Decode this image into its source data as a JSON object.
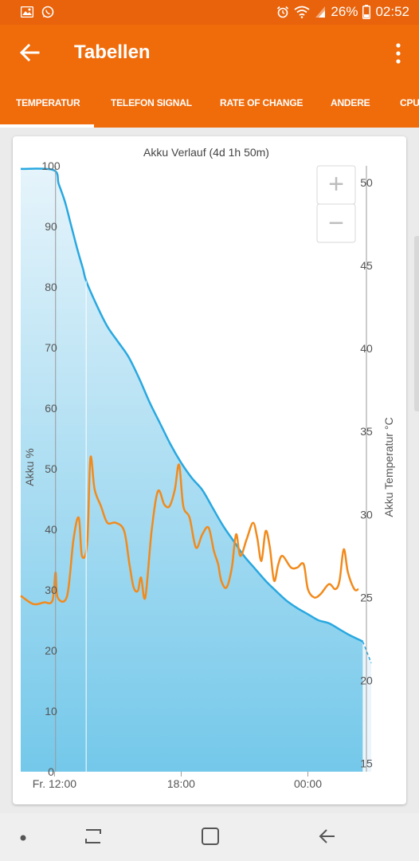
{
  "statusbar": {
    "battery": "26%",
    "time": "02:52"
  },
  "appbar": {
    "title": "Tabellen"
  },
  "tabs": [
    {
      "label": "TEMPERATUR",
      "selected": true
    },
    {
      "label": "TELEFON SIGNAL",
      "selected": false
    },
    {
      "label": "RATE OF CHANGE",
      "selected": false
    },
    {
      "label": "ANDERE",
      "selected": false
    },
    {
      "label": "CPU",
      "selected": false
    }
  ],
  "zoom": {
    "in_label": "+",
    "out_label": "−"
  },
  "colors": {
    "accent": "#f06b0a",
    "status": "#e8630c",
    "battery_line": "#29a8e0",
    "temp_line": "#f28a1b",
    "fill_top": "#e6f4fb",
    "fill_bottom": "#74c8ea"
  },
  "chart_data": {
    "type": "area",
    "title": "Akku Verlauf (4d 1h 50m)",
    "xlabel": "",
    "ylabel": "Akku %",
    "y2label": "Akku Temperatur °C",
    "x_ticks": [
      "Fr. 12:00",
      "18:00",
      "00:00"
    ],
    "ylim": [
      0,
      100
    ],
    "y_ticks": [
      0,
      10,
      20,
      30,
      40,
      50,
      60,
      70,
      80,
      90,
      100
    ],
    "y2lim": [
      14.5,
      51
    ],
    "y2_ticks": [
      15,
      20,
      25,
      30,
      35,
      40,
      45,
      50
    ],
    "x_unit": "hours",
    "x_range": [
      10.4,
      27.0
    ],
    "series": [
      {
        "axis": "left",
        "values": [
          [
            10.4,
            99.5
          ],
          [
            11.95,
            99.3
          ],
          [
            12.2,
            97
          ],
          [
            12.5,
            94
          ],
          [
            12.8,
            90
          ],
          [
            13.1,
            86
          ],
          [
            13.35,
            83
          ],
          [
            13.5,
            81
          ],
          [
            14.0,
            77
          ],
          [
            14.5,
            73.5
          ],
          [
            15.0,
            71
          ],
          [
            15.5,
            68.5
          ],
          [
            16.0,
            65
          ],
          [
            16.5,
            61
          ],
          [
            17.0,
            57.5
          ],
          [
            17.5,
            54
          ],
          [
            18.0,
            51
          ],
          [
            18.5,
            48.5
          ],
          [
            19.0,
            46.5
          ],
          [
            19.5,
            43.5
          ],
          [
            20.0,
            40.5
          ],
          [
            20.5,
            38
          ],
          [
            21.0,
            35.5
          ],
          [
            21.5,
            33.5
          ],
          [
            22.0,
            31.5
          ],
          [
            22.5,
            29.8
          ],
          [
            23.0,
            28.2
          ],
          [
            23.5,
            27
          ],
          [
            24.0,
            26
          ],
          [
            24.5,
            25
          ],
          [
            25.0,
            24.5
          ],
          [
            25.5,
            23.5
          ],
          [
            26.0,
            22.5
          ],
          [
            26.6,
            21.5
          ]
        ]
      },
      {
        "axis": "right",
        "values": [
          [
            10.4,
            25.1
          ],
          [
            11.0,
            24.6
          ],
          [
            11.5,
            24.7
          ],
          [
            11.9,
            24.8
          ],
          [
            12.05,
            26.5
          ],
          [
            12.15,
            25.0
          ],
          [
            12.6,
            25.1
          ],
          [
            12.9,
            28.5
          ],
          [
            13.15,
            29.8
          ],
          [
            13.3,
            27.5
          ],
          [
            13.55,
            28.3
          ],
          [
            13.7,
            33.4
          ],
          [
            13.9,
            31.5
          ],
          [
            14.2,
            30.5
          ],
          [
            14.5,
            29.5
          ],
          [
            14.9,
            29.5
          ],
          [
            15.3,
            29.0
          ],
          [
            15.55,
            27.0
          ],
          [
            15.75,
            25.6
          ],
          [
            15.95,
            25.4
          ],
          [
            16.1,
            26.2
          ],
          [
            16.3,
            25.0
          ],
          [
            16.6,
            29.0
          ],
          [
            16.9,
            31.4
          ],
          [
            17.2,
            30.6
          ],
          [
            17.45,
            30.5
          ],
          [
            17.7,
            31.5
          ],
          [
            17.9,
            33.0
          ],
          [
            18.1,
            30.5
          ],
          [
            18.4,
            29.8
          ],
          [
            18.7,
            28.0
          ],
          [
            19.0,
            28.8
          ],
          [
            19.3,
            29.2
          ],
          [
            19.55,
            27.8
          ],
          [
            19.75,
            27.0
          ],
          [
            19.9,
            26.0
          ],
          [
            20.15,
            25.6
          ],
          [
            20.4,
            26.8
          ],
          [
            20.6,
            28.8
          ],
          [
            20.8,
            27.5
          ],
          [
            21.1,
            28.5
          ],
          [
            21.4,
            29.5
          ],
          [
            21.6,
            28.6
          ],
          [
            21.8,
            27.2
          ],
          [
            22.0,
            29.0
          ],
          [
            22.2,
            28.0
          ],
          [
            22.4,
            26.0
          ],
          [
            22.6,
            27.0
          ],
          [
            22.8,
            27.5
          ],
          [
            23.2,
            26.8
          ],
          [
            23.5,
            26.8
          ],
          [
            23.8,
            27.0
          ],
          [
            24.0,
            25.5
          ],
          [
            24.3,
            25.0
          ],
          [
            24.6,
            25.2
          ],
          [
            25.0,
            25.8
          ],
          [
            25.3,
            25.5
          ],
          [
            25.5,
            26.0
          ],
          [
            25.7,
            27.9
          ],
          [
            25.9,
            26.5
          ],
          [
            26.2,
            25.5
          ],
          [
            26.4,
            25.5
          ]
        ]
      }
    ],
    "grid": false,
    "legend": "none"
  }
}
